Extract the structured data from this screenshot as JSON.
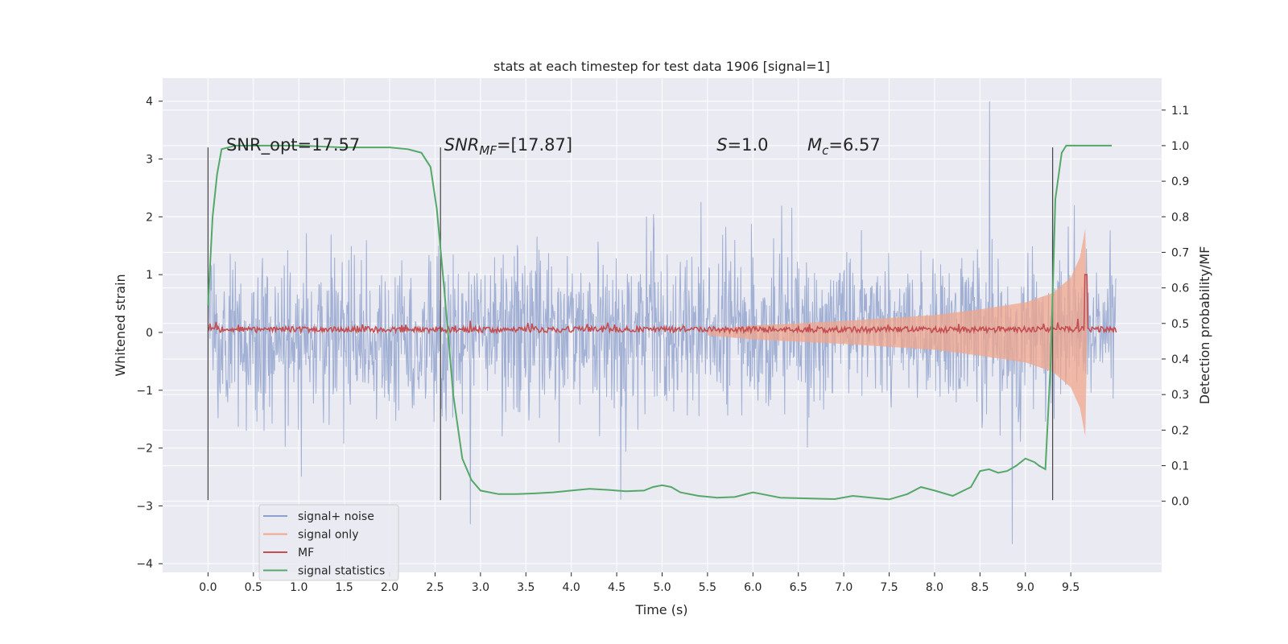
{
  "chart_data": {
    "type": "line",
    "title": "stats at each timestep for test data 1906 [signal=1]",
    "xlabel": "Time (s)",
    "ylabel": "Whitened strain",
    "y2label": "Detection probability/MF",
    "xlim": [
      -0.5,
      10.5
    ],
    "ylim": [
      -4.15,
      4.4
    ],
    "y2lim": [
      -0.2,
      1.19
    ],
    "xticks": [
      "0.0",
      "0.5",
      "1.0",
      "1.5",
      "2.0",
      "2.5",
      "3.0",
      "3.5",
      "4.0",
      "4.5",
      "5.0",
      "5.5",
      "6.0",
      "6.5",
      "7.0",
      "7.5",
      "8.0",
      "8.5",
      "9.0",
      "9.5"
    ],
    "yticks": [
      "4",
      "3",
      "2",
      "1",
      "0",
      "−1",
      "−2",
      "−3",
      "−4"
    ],
    "y2ticks": [
      "0.0",
      "0.1",
      "0.2",
      "0.3",
      "0.4",
      "0.5",
      "0.6",
      "0.7",
      "0.8",
      "0.9",
      "1.0",
      "1.1"
    ],
    "grid": true,
    "legend_position": "lower-left",
    "annotations": [
      {
        "text": "SNR_opt=17.57",
        "x": 0.2,
        "y": 3.15
      },
      {
        "text_parts": [
          "SNR",
          "MF",
          "=[17.87]"
        ],
        "x": 2.6,
        "y": 3.15
      },
      {
        "text_parts": [
          "S",
          "",
          "=1.0"
        ],
        "x": 5.6,
        "y": 3.15
      },
      {
        "text_parts": [
          "M",
          "c",
          "=6.57"
        ],
        "x": 6.6,
        "y": 3.15
      }
    ],
    "vlines": [
      {
        "x": 0.0,
        "ymin": -2.9,
        "ymax": 3.2
      },
      {
        "x": 2.56,
        "ymin": -2.9,
        "ymax": 3.2
      },
      {
        "x": 9.3,
        "ymin": -2.9,
        "ymax": 3.2
      }
    ],
    "series": [
      {
        "name": "signal+ noise",
        "color": "#8da0cb",
        "axis": "left",
        "x_range": [
          0.0,
          10.0
        ],
        "amplitude_typical": 1.4,
        "amplitude_peak": 4.0
      },
      {
        "name": "signal only",
        "color": "#f0a58c",
        "axis": "left",
        "envelope": {
          "x": [
            5.5,
            6.0,
            7.0,
            8.0,
            8.5,
            9.0,
            9.3,
            9.5,
            9.6,
            9.66,
            9.68
          ],
          "y": [
            0.05,
            0.12,
            0.2,
            0.3,
            0.4,
            0.52,
            0.68,
            0.95,
            1.3,
            1.8,
            0.0
          ]
        }
      },
      {
        "name": "MF",
        "color": "#c44e52",
        "axis": "left",
        "baseline": 0.05,
        "jitter": 0.1,
        "peak": {
          "x": 9.67,
          "y": 1.0
        }
      },
      {
        "name": "signal statistics",
        "color": "#55a868",
        "axis": "right",
        "x": [
          0.0,
          0.05,
          0.1,
          0.15,
          0.3,
          0.6,
          1.0,
          1.5,
          2.0,
          2.2,
          2.35,
          2.45,
          2.52,
          2.6,
          2.7,
          2.8,
          2.9,
          3.0,
          3.2,
          3.4,
          3.6,
          3.8,
          4.0,
          4.2,
          4.4,
          4.6,
          4.8,
          4.9,
          5.0,
          5.1,
          5.2,
          5.4,
          5.6,
          5.8,
          6.0,
          6.1,
          6.3,
          6.6,
          6.9,
          7.1,
          7.3,
          7.5,
          7.7,
          7.85,
          8.0,
          8.2,
          8.4,
          8.5,
          8.6,
          8.7,
          8.8,
          8.9,
          9.0,
          9.1,
          9.15,
          9.22,
          9.28,
          9.33,
          9.4,
          9.45,
          9.6,
          9.8,
          9.95
        ],
        "y": [
          0.55,
          0.8,
          0.92,
          0.99,
          1.0,
          1.0,
          1.0,
          0.995,
          0.995,
          0.99,
          0.98,
          0.94,
          0.82,
          0.6,
          0.3,
          0.12,
          0.06,
          0.03,
          0.02,
          0.02,
          0.022,
          0.025,
          0.03,
          0.035,
          0.032,
          0.028,
          0.03,
          0.04,
          0.045,
          0.04,
          0.025,
          0.015,
          0.01,
          0.012,
          0.025,
          0.02,
          0.01,
          0.008,
          0.006,
          0.015,
          0.01,
          0.005,
          0.02,
          0.04,
          0.03,
          0.015,
          0.04,
          0.085,
          0.09,
          0.08,
          0.085,
          0.1,
          0.12,
          0.11,
          0.1,
          0.09,
          0.4,
          0.85,
          0.98,
          1.0,
          1.0,
          1.0,
          1.0
        ]
      }
    ]
  }
}
